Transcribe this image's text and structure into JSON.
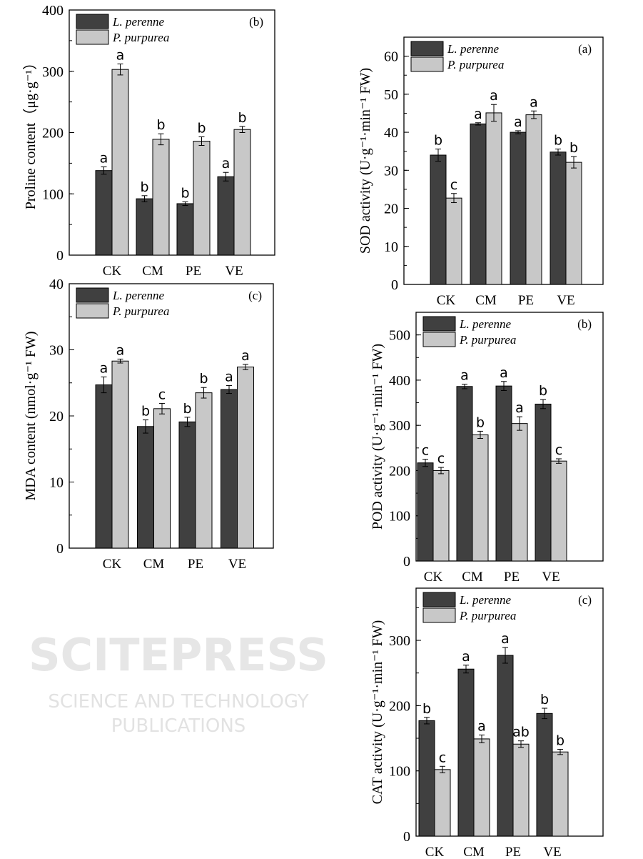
{
  "watermark": {
    "line1": "SCITEPRESS",
    "line2": "SCIENCE AND TECHNOLOGY PUBLICATIONS"
  },
  "colors": {
    "l_perenne": "#404040",
    "p_purpurea": "#c8c8c8",
    "axis": "#000000"
  },
  "chart_data": [
    {
      "type": "bar",
      "panel": "(b)",
      "ylabel": "Proline content（μg·g⁻¹）",
      "categories": [
        "CK",
        "CM",
        "PE",
        "VE"
      ],
      "ylim": [
        0,
        400
      ],
      "yticks": [
        0,
        100,
        200,
        300,
        400
      ],
      "minor_step": 50,
      "legend": "top-left",
      "series": [
        {
          "name": "L. perenne",
          "values": [
            138,
            92,
            84,
            128
          ],
          "errors": [
            6,
            5,
            3,
            7
          ],
          "letters": [
            "a",
            "b",
            "b",
            "a"
          ]
        },
        {
          "name": "P. purpurea",
          "values": [
            303,
            189,
            186,
            205
          ],
          "errors": [
            9,
            9,
            7,
            5
          ],
          "letters": [
            "a",
            "b",
            "b",
            "b"
          ]
        }
      ]
    },
    {
      "type": "bar",
      "panel": "(a)",
      "ylabel": "SOD activity (U·g⁻¹·min⁻¹ FW)",
      "categories": [
        "CK",
        "CM",
        "PE",
        "VE"
      ],
      "ylim": [
        0,
        65
      ],
      "yticks": [
        0,
        10,
        20,
        30,
        40,
        50,
        60
      ],
      "minor_step": 5,
      "legend": "top-left",
      "series": [
        {
          "name": "L. perenne",
          "values": [
            34.0,
            42.2,
            40.0,
            34.8
          ],
          "errors": [
            1.6,
            0.3,
            0.4,
            0.8
          ],
          "letters": [
            "b",
            "a",
            "a",
            "b"
          ]
        },
        {
          "name": "P. purpurea",
          "values": [
            22.7,
            45.1,
            44.6,
            32.1
          ],
          "errors": [
            1.2,
            2.2,
            1.0,
            1.5
          ],
          "letters": [
            "c",
            "a",
            "a",
            "b"
          ]
        }
      ]
    },
    {
      "type": "bar",
      "panel": "(c)",
      "ylabel": "MDA content (nmol·g⁻¹ FW)",
      "categories": [
        "CK",
        "CM",
        "PE",
        "VE"
      ],
      "ylim": [
        0,
        40
      ],
      "yticks": [
        0,
        10,
        20,
        30,
        40
      ],
      "minor_step": 5,
      "legend": "top-left",
      "series": [
        {
          "name": "L. perenne",
          "values": [
            24.7,
            18.4,
            19.1,
            24.0
          ],
          "errors": [
            1.2,
            1.0,
            0.7,
            0.6
          ],
          "letters": [
            "a",
            "b",
            "b",
            "a"
          ]
        },
        {
          "name": "P. purpurea",
          "values": [
            28.3,
            21.1,
            23.5,
            27.4
          ],
          "errors": [
            0.3,
            0.8,
            0.8,
            0.4
          ],
          "letters": [
            "a",
            "c",
            "b",
            "a"
          ]
        }
      ]
    },
    {
      "type": "bar",
      "panel": "(b)",
      "ylabel": "POD activity (U·g⁻¹·min⁻¹ FW)",
      "categories": [
        "CK",
        "CM",
        "PE",
        "VE"
      ],
      "ylim": [
        0,
        550
      ],
      "yticks": [
        0,
        100,
        200,
        300,
        400,
        500
      ],
      "minor_step": 50,
      "legend": "top-left",
      "series": [
        {
          "name": "L. perenne",
          "values": [
            217,
            386,
            387,
            347
          ],
          "errors": [
            8,
            5,
            10,
            10
          ],
          "letters": [
            "c",
            "a",
            "a",
            "b"
          ]
        },
        {
          "name": "P. purpurea",
          "values": [
            200,
            279,
            304,
            221
          ],
          "errors": [
            7,
            8,
            15,
            5
          ],
          "letters": [
            "c",
            "b",
            "a",
            "c"
          ]
        }
      ]
    },
    {
      "type": "bar",
      "panel": "(c)",
      "ylabel": "CAT activity (U·g⁻¹·min⁻¹ FW)",
      "categories": [
        "CK",
        "CM",
        "PE",
        "VE"
      ],
      "ylim": [
        0,
        380
      ],
      "yticks": [
        0,
        100,
        200,
        300
      ],
      "minor_step": 50,
      "legend": "top-left",
      "series": [
        {
          "name": "L. perenne",
          "values": [
            177,
            256,
            277,
            188
          ],
          "errors": [
            5,
            6,
            12,
            8
          ],
          "letters": [
            "b",
            "a",
            "a",
            "b"
          ]
        },
        {
          "name": "P. purpurea",
          "values": [
            102,
            149,
            141,
            129
          ],
          "errors": [
            5,
            6,
            5,
            4
          ],
          "letters": [
            "c",
            "a",
            "ab",
            "b"
          ]
        }
      ]
    }
  ]
}
